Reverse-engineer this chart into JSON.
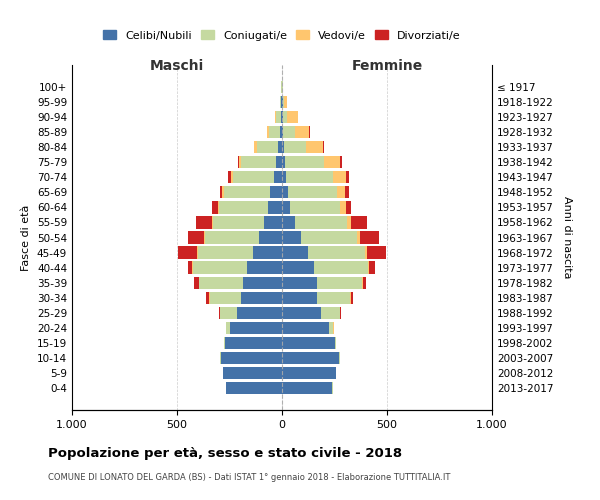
{
  "age_groups": [
    "0-4",
    "5-9",
    "10-14",
    "15-19",
    "20-24",
    "25-29",
    "30-34",
    "35-39",
    "40-44",
    "45-49",
    "50-54",
    "55-59",
    "60-64",
    "65-69",
    "70-74",
    "75-79",
    "80-84",
    "85-89",
    "90-94",
    "95-99",
    "100+"
  ],
  "birth_years": [
    "2013-2017",
    "2008-2012",
    "2003-2007",
    "1998-2002",
    "1993-1997",
    "1988-1992",
    "1983-1987",
    "1978-1982",
    "1973-1977",
    "1968-1972",
    "1963-1967",
    "1958-1962",
    "1953-1957",
    "1948-1952",
    "1943-1947",
    "1938-1942",
    "1933-1937",
    "1928-1932",
    "1923-1927",
    "1918-1922",
    "≤ 1917"
  ],
  "maschi": {
    "celibe": [
      265,
      280,
      290,
      270,
      250,
      215,
      195,
      185,
      165,
      140,
      110,
      85,
      65,
      55,
      40,
      30,
      20,
      8,
      5,
      3,
      2
    ],
    "coniugato": [
      2,
      2,
      5,
      5,
      15,
      80,
      150,
      210,
      260,
      260,
      255,
      245,
      235,
      220,
      195,
      165,
      100,
      55,
      25,
      5,
      2
    ],
    "vedovo": [
      0,
      0,
      0,
      0,
      2,
      2,
      2,
      2,
      5,
      5,
      5,
      5,
      5,
      10,
      10,
      10,
      15,
      10,
      5,
      2,
      0
    ],
    "divorziato": [
      0,
      0,
      0,
      2,
      2,
      5,
      15,
      20,
      20,
      90,
      80,
      75,
      30,
      10,
      10,
      5,
      0,
      0,
      0,
      0,
      0
    ]
  },
  "femmine": {
    "nubile": [
      240,
      255,
      270,
      250,
      225,
      185,
      165,
      165,
      150,
      125,
      90,
      60,
      40,
      30,
      20,
      15,
      10,
      5,
      5,
      3,
      2
    ],
    "coniugata": [
      2,
      2,
      5,
      5,
      20,
      90,
      160,
      215,
      260,
      270,
      265,
      250,
      235,
      230,
      225,
      185,
      105,
      55,
      20,
      5,
      2
    ],
    "vedova": [
      0,
      0,
      0,
      0,
      2,
      2,
      2,
      5,
      5,
      10,
      15,
      20,
      30,
      40,
      60,
      75,
      80,
      70,
      50,
      15,
      2
    ],
    "divorziata": [
      0,
      0,
      0,
      0,
      2,
      5,
      10,
      15,
      30,
      90,
      90,
      75,
      25,
      20,
      15,
      10,
      5,
      5,
      2,
      0,
      0
    ]
  },
  "colors": {
    "celibe": "#4472a8",
    "coniugato": "#c5d9a0",
    "vedovo": "#ffc66e",
    "divorziato": "#cc2222"
  },
  "xlim": 1000,
  "title": "Popolazione per età, sesso e stato civile - 2018",
  "subtitle": "COMUNE DI LONATO DEL GARDA (BS) - Dati ISTAT 1° gennaio 2018 - Elaborazione TUTTITALIA.IT",
  "ylabel_left": "Fasce di età",
  "ylabel_right": "Anni di nascita",
  "xlabel_left": "Maschi",
  "xlabel_right": "Femmine"
}
